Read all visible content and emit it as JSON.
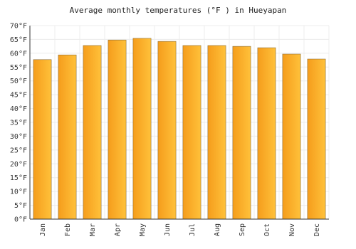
{
  "chart_data": {
    "type": "bar",
    "title": "Average monthly temperatures (°F ) in Hueyapan",
    "categories": [
      "Jan",
      "Feb",
      "Mar",
      "Apr",
      "May",
      "Jun",
      "Jul",
      "Aug",
      "Sep",
      "Oct",
      "Nov",
      "Dec"
    ],
    "values": [
      57.7,
      59.4,
      62.8,
      64.8,
      65.4,
      64.3,
      62.8,
      62.8,
      62.5,
      62.0,
      59.7,
      57.9
    ],
    "color": "#ffa726",
    "ylim": [
      0,
      70
    ],
    "yticks": [
      {
        "value": 0,
        "label": "0°F"
      },
      {
        "value": 5,
        "label": "5°F"
      },
      {
        "value": 10,
        "label": "10°F"
      },
      {
        "value": 15,
        "label": "15°F"
      },
      {
        "value": 20,
        "label": "20°F"
      },
      {
        "value": 25,
        "label": "25°F"
      },
      {
        "value": 30,
        "label": "30°F"
      },
      {
        "value": 35,
        "label": "35°F"
      },
      {
        "value": 40,
        "label": "40°F"
      },
      {
        "value": 45,
        "label": "45°F"
      },
      {
        "value": 50,
        "label": "50°F"
      },
      {
        "value": 55,
        "label": "55°F"
      },
      {
        "value": 60,
        "label": "60°F"
      },
      {
        "value": 65,
        "label": "65°F"
      },
      {
        "value": 70,
        "label": "70°F"
      }
    ],
    "grid": true
  }
}
